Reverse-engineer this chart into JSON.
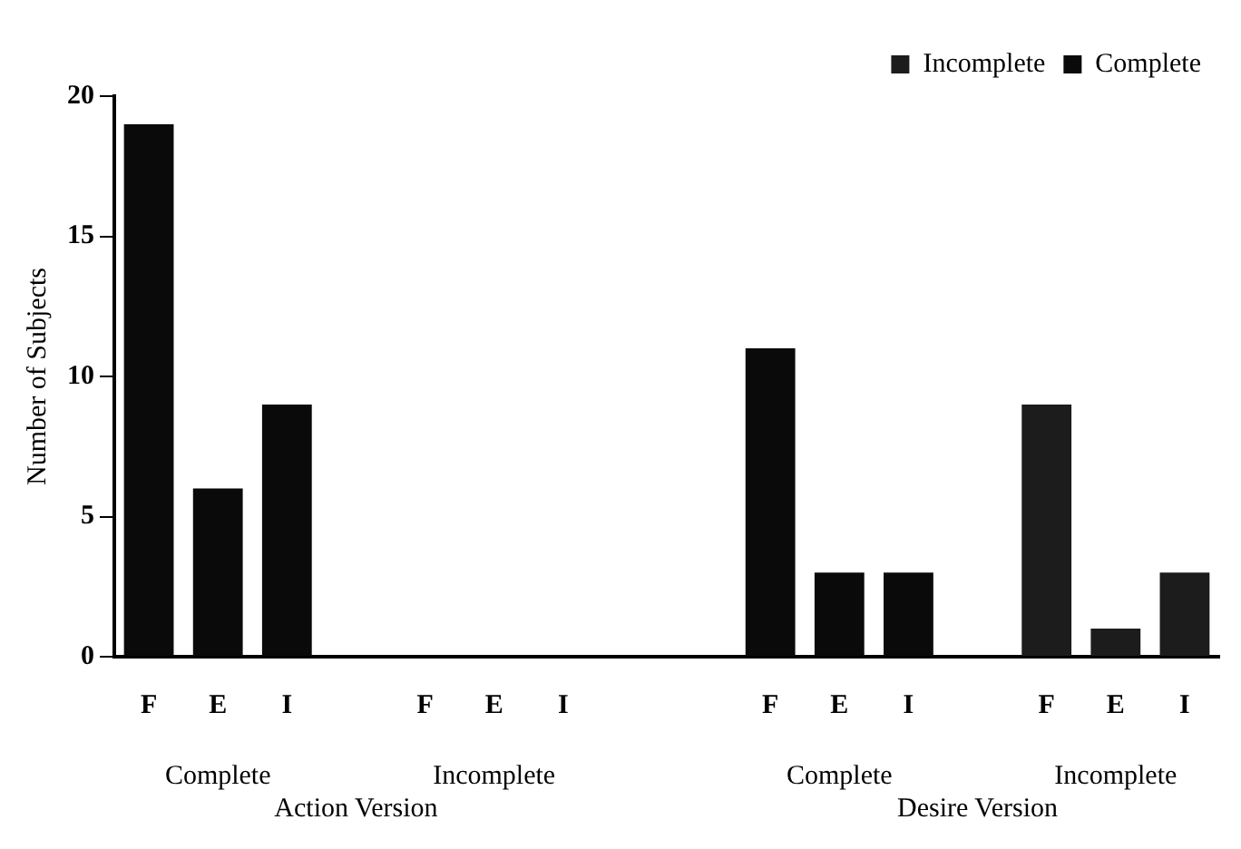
{
  "chart_data": {
    "type": "bar",
    "ylabel": "Number of Subjects",
    "categories": [
      "F",
      "E",
      "I",
      null,
      "F",
      "E",
      "I",
      null,
      null,
      "F",
      "E",
      "I",
      null,
      "F",
      "E",
      "I"
    ],
    "series": [
      {
        "name": "Incomplete",
        "color": "#1c1c1c",
        "values": [
          null,
          null,
          null,
          null,
          0,
          0,
          0,
          null,
          null,
          null,
          null,
          null,
          null,
          9,
          1,
          3
        ]
      },
      {
        "name": "Complete",
        "color": "#0a0a0a",
        "values": [
          19,
          6,
          9,
          null,
          null,
          null,
          null,
          null,
          null,
          11,
          3,
          3,
          null,
          null,
          null,
          null
        ]
      }
    ],
    "ylim": [
      0,
      20
    ],
    "yticks": [
      0,
      5,
      10,
      15,
      20
    ],
    "grid": false,
    "legend": "top right",
    "annotations": [
      "Complete",
      "Incomplete",
      "Complete",
      "Incomplete",
      "Action Version",
      "Desire Version"
    ]
  }
}
